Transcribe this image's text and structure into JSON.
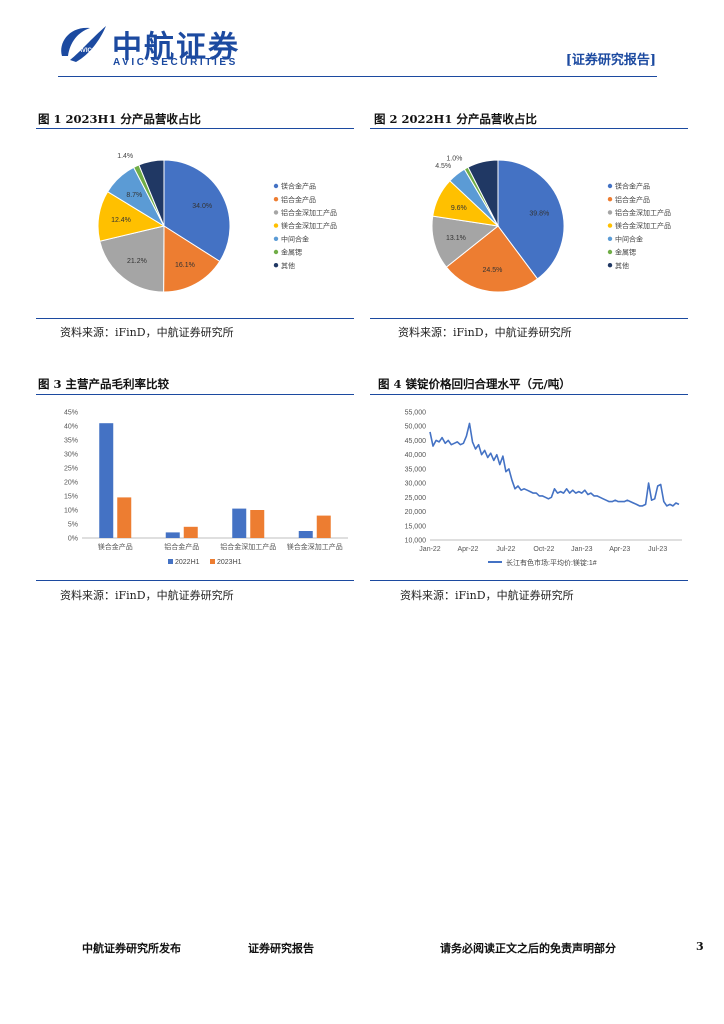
{
  "header": {
    "logo_cn": "中航证券",
    "logo_en": "AVIC SECURITIES",
    "logo_badge": "AVIC",
    "report_tag": "[证券研究报告]"
  },
  "figures": [
    {
      "title": "图 1 2023H1 分产品营收占比",
      "source": "资料来源：iFinD，中航证券研究所",
      "chart_data": {
        "type": "pie",
        "categories": [
          "镁合金产品",
          "铝合金产品",
          "铝合金深加工产品",
          "镁合金深加工产品",
          "中间合金",
          "金属锶",
          "其他"
        ],
        "values": [
          34.0,
          16.1,
          21.2,
          12.4,
          8.7,
          1.4,
          6.2
        ],
        "labels": [
          "34.0%",
          "16.1%",
          "21.2%",
          "12.4%",
          "8.7%",
          "1.4%",
          ""
        ],
        "colors": [
          "#4472C4",
          "#ED7D31",
          "#A5A5A5",
          "#FFC000",
          "#5B9BD5",
          "#70AD47",
          "#203864"
        ],
        "legend": "right"
      }
    },
    {
      "title": "图 2 2022H1 分产品营收占比",
      "source": "资料来源：iFinD，中航证券研究所",
      "chart_data": {
        "type": "pie",
        "categories": [
          "镁合金产品",
          "铝合金产品",
          "铝合金深加工产品",
          "镁合金深加工产品",
          "中间合金",
          "金属锶",
          "其他"
        ],
        "values": [
          39.8,
          24.5,
          13.1,
          9.6,
          4.5,
          1.0,
          7.5
        ],
        "labels": [
          "39.8%",
          "24.5%",
          "13.1%",
          "9.6%",
          "4.5%",
          "1.0%",
          ""
        ],
        "colors": [
          "#4472C4",
          "#ED7D31",
          "#A5A5A5",
          "#FFC000",
          "#5B9BD5",
          "#70AD47",
          "#203864"
        ],
        "legend": "right"
      }
    },
    {
      "title": "图 3 主营产品毛利率比较",
      "source": "资料来源：iFinD，中航证券研究所",
      "chart_data": {
        "type": "bar",
        "categories": [
          "镁合金产品",
          "铝合金产品",
          "铝合金深加工产品",
          "镁合金深加工产品"
        ],
        "series": [
          {
            "name": "2022H1",
            "values": [
              41.0,
              2.0,
              10.5,
              2.5
            ],
            "color": "#4472C4"
          },
          {
            "name": "2023H1",
            "values": [
              14.5,
              4.0,
              10.0,
              8.0
            ],
            "color": "#ED7D31"
          }
        ],
        "yticks": [
          "0%",
          "5%",
          "10%",
          "15%",
          "20%",
          "25%",
          "30%",
          "35%",
          "40%",
          "45%"
        ],
        "ylim": [
          0,
          45
        ],
        "legend": "bottom"
      }
    },
    {
      "title": "图 4 镁锭价格回归合理水平（元/吨）",
      "source": "资料来源：iFinD，中航证券研究所",
      "chart_data": {
        "type": "line",
        "series": [
          {
            "name": "长江有色市场:平均价:镁锭:1#",
            "color": "#4472C4",
            "x": [
              0.0,
              0.02,
              0.04,
              0.06,
              0.08,
              0.1,
              0.12,
              0.14,
              0.16,
              0.18,
              0.2,
              0.22,
              0.24,
              0.26,
              0.28,
              0.3,
              0.32,
              0.34,
              0.36,
              0.38,
              0.4,
              0.42,
              0.44,
              0.46,
              0.48,
              0.5,
              0.52,
              0.54,
              0.56,
              0.58,
              0.6,
              0.62,
              0.64,
              0.66,
              0.68,
              0.7,
              0.72,
              0.74,
              0.76,
              0.78,
              0.8,
              0.82,
              0.84,
              0.86,
              0.88,
              0.9,
              0.92,
              0.94,
              0.96,
              0.98,
              1.0,
              1.02,
              1.04,
              1.06,
              1.08,
              1.1,
              1.12,
              1.14,
              1.16,
              1.18,
              1.2,
              1.22,
              1.24,
              1.26,
              1.28,
              1.3,
              1.32,
              1.34,
              1.36,
              1.38,
              1.4,
              1.42,
              1.44,
              1.46,
              1.48,
              1.5,
              1.52,
              1.54,
              1.56,
              1.58,
              1.6,
              1.62,
              1.64
            ],
            "y": [
              48000,
              43000,
              45000,
              44500,
              46000,
              44000,
              45000,
              43500,
              44000,
              44500,
              43500,
              44000,
              46500,
              51000,
              44500,
              42000,
              43500,
              40000,
              41500,
              39000,
              40500,
              38000,
              40000,
              36500,
              39500,
              34000,
              35000,
              31000,
              28000,
              29000,
              27500,
              28000,
              27500,
              27000,
              26500,
              26500,
              25500,
              25500,
              25000,
              24500,
              25000,
              28000,
              26500,
              27000,
              26500,
              28000,
              26500,
              27500,
              26500,
              27000,
              26500,
              27500,
              26000,
              26500,
              25500,
              25500,
              25000,
              24500,
              24000,
              23500,
              23500,
              24000,
              23500,
              23500,
              23500,
              24000,
              23500,
              23000,
              22500,
              22000,
              22000,
              22500,
              30000,
              24000,
              24500,
              29000,
              29500,
              23500,
              22000,
              22500,
              22000,
              23000,
              22500
            ]
          }
        ],
        "xticks": [
          "Jan-22",
          "Apr-22",
          "Jul-22",
          "Oct-22",
          "Jan-23",
          "Apr-23",
          "Jul-23"
        ],
        "yticks": [
          "10,000",
          "15,000",
          "20,000",
          "25,000",
          "30,000",
          "35,000",
          "40,000",
          "45,000",
          "50,000",
          "55,000"
        ],
        "ylim": [
          10000,
          55000
        ],
        "legend": "bottom"
      }
    }
  ],
  "footer": {
    "left": "中航证券研究所发布",
    "middle": "证券研究报告",
    "right": "请务必阅读正文之后的免责声明部分",
    "page": "3"
  }
}
